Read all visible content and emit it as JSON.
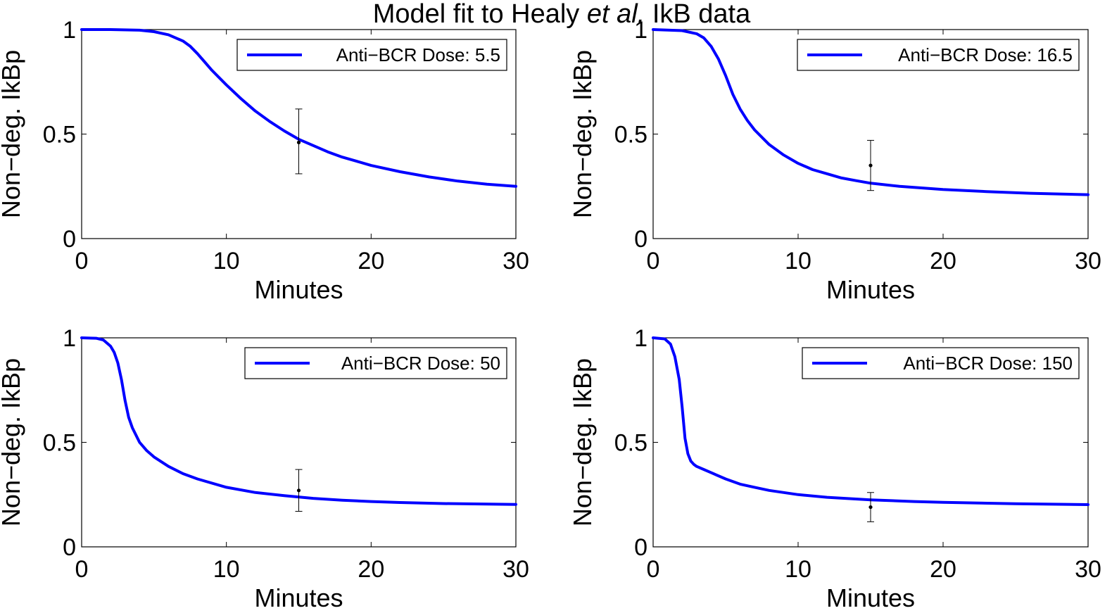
{
  "figure": {
    "title_prefix": "Model fit to Healy ",
    "title_italic": "et al.",
    "title_suffix": " IkB data"
  },
  "chart_data": [
    {
      "type": "line",
      "title": "",
      "xlabel": "Minutes",
      "ylabel": "Non−deg. IkBp",
      "xlim": [
        0,
        30
      ],
      "ylim": [
        0,
        1
      ],
      "xticks": [
        0,
        10,
        20,
        30
      ],
      "yticks": [
        0,
        0.5,
        1
      ],
      "ytick_labels": [
        "0",
        "0.5",
        "1"
      ],
      "legend": {
        "position": "top-right",
        "entries": [
          "Anti−BCR Dose: 5.5"
        ]
      },
      "colors": {
        "series": "#0000ff",
        "data_point": "#000000"
      },
      "series": [
        {
          "name": "Anti−BCR Dose: 5.5",
          "x": [
            0,
            2,
            4,
            5,
            6,
            7,
            7.5,
            8,
            8.5,
            9,
            9.5,
            10,
            11,
            12,
            13,
            14,
            15,
            16,
            17,
            18,
            19,
            20,
            22,
            24,
            26,
            28,
            30
          ],
          "y": [
            1.0,
            1.0,
            0.997,
            0.99,
            0.975,
            0.945,
            0.92,
            0.885,
            0.845,
            0.805,
            0.77,
            0.735,
            0.67,
            0.61,
            0.56,
            0.515,
            0.475,
            0.445,
            0.415,
            0.39,
            0.37,
            0.35,
            0.32,
            0.295,
            0.275,
            0.26,
            0.25
          ]
        }
      ],
      "data_points": [
        {
          "x": 15,
          "y": 0.46,
          "err_low": 0.31,
          "err_high": 0.62
        }
      ]
    },
    {
      "type": "line",
      "title": "",
      "xlabel": "Minutes",
      "ylabel": "Non−deg. IkBp",
      "xlim": [
        0,
        30
      ],
      "ylim": [
        0,
        1
      ],
      "xticks": [
        0,
        10,
        20,
        30
      ],
      "yticks": [
        0,
        0.5,
        1
      ],
      "ytick_labels": [
        "0",
        "0.5",
        "1"
      ],
      "legend": {
        "position": "top-right",
        "entries": [
          "Anti−BCR Dose: 16.5"
        ]
      },
      "colors": {
        "series": "#0000ff",
        "data_point": "#000000"
      },
      "series": [
        {
          "name": "Anti−BCR Dose: 16.5",
          "x": [
            0,
            2,
            3,
            3.5,
            4,
            4.5,
            5,
            5.5,
            6,
            6.5,
            7,
            8,
            9,
            10,
            11,
            12,
            13,
            14,
            15,
            17,
            20,
            23,
            26,
            30
          ],
          "y": [
            1.0,
            0.995,
            0.98,
            0.96,
            0.92,
            0.86,
            0.78,
            0.69,
            0.62,
            0.565,
            0.52,
            0.45,
            0.4,
            0.36,
            0.33,
            0.31,
            0.29,
            0.277,
            0.265,
            0.25,
            0.235,
            0.225,
            0.217,
            0.21
          ]
        }
      ],
      "data_points": [
        {
          "x": 15,
          "y": 0.35,
          "err_low": 0.23,
          "err_high": 0.47
        }
      ]
    },
    {
      "type": "line",
      "title": "",
      "xlabel": "Minutes",
      "ylabel": "Non−deg. IkBp",
      "xlim": [
        0,
        30
      ],
      "ylim": [
        0,
        1
      ],
      "xticks": [
        0,
        10,
        20,
        30
      ],
      "yticks": [
        0,
        0.5,
        1
      ],
      "ytick_labels": [
        "0",
        "0.5",
        "1"
      ],
      "legend": {
        "position": "top-right",
        "entries": [
          "Anti−BCR Dose: 50"
        ]
      },
      "colors": {
        "series": "#0000ff",
        "data_point": "#000000"
      },
      "series": [
        {
          "name": "Anti−BCR Dose: 50",
          "x": [
            0,
            1,
            1.5,
            2,
            2.25,
            2.5,
            2.75,
            3,
            3.25,
            3.5,
            4,
            4.5,
            5,
            6,
            7,
            8,
            10,
            12,
            14,
            16,
            18,
            20,
            22,
            25,
            30
          ],
          "y": [
            1.0,
            0.998,
            0.99,
            0.96,
            0.93,
            0.88,
            0.8,
            0.7,
            0.62,
            0.57,
            0.5,
            0.46,
            0.43,
            0.385,
            0.35,
            0.325,
            0.285,
            0.26,
            0.245,
            0.232,
            0.223,
            0.217,
            0.212,
            0.207,
            0.203
          ]
        }
      ],
      "data_points": [
        {
          "x": 15,
          "y": 0.27,
          "err_low": 0.17,
          "err_high": 0.37
        }
      ]
    },
    {
      "type": "line",
      "title": "",
      "xlabel": "Minutes",
      "ylabel": "Non−deg. IkBp",
      "xlim": [
        0,
        30
      ],
      "ylim": [
        0,
        1
      ],
      "xticks": [
        0,
        10,
        20,
        30
      ],
      "yticks": [
        0,
        0.5,
        1
      ],
      "ytick_labels": [
        "0",
        "0.5",
        "1"
      ],
      "legend": {
        "position": "top-right",
        "entries": [
          "Anti−BCR Dose: 150"
        ]
      },
      "colors": {
        "series": "#0000ff",
        "data_point": "#000000"
      },
      "series": [
        {
          "name": "Anti−BCR Dose: 150",
          "x": [
            0,
            0.8,
            1.2,
            1.5,
            1.8,
            2,
            2.2,
            2.4,
            2.6,
            2.8,
            3,
            3.5,
            4,
            5,
            6,
            7,
            8,
            10,
            12,
            15,
            18,
            20,
            25,
            30
          ],
          "y": [
            1.0,
            0.995,
            0.97,
            0.91,
            0.8,
            0.67,
            0.52,
            0.445,
            0.41,
            0.395,
            0.385,
            0.37,
            0.355,
            0.325,
            0.3,
            0.285,
            0.27,
            0.25,
            0.237,
            0.225,
            0.217,
            0.213,
            0.206,
            0.202
          ]
        }
      ],
      "data_points": [
        {
          "x": 15,
          "y": 0.19,
          "err_low": 0.12,
          "err_high": 0.26
        }
      ]
    }
  ]
}
